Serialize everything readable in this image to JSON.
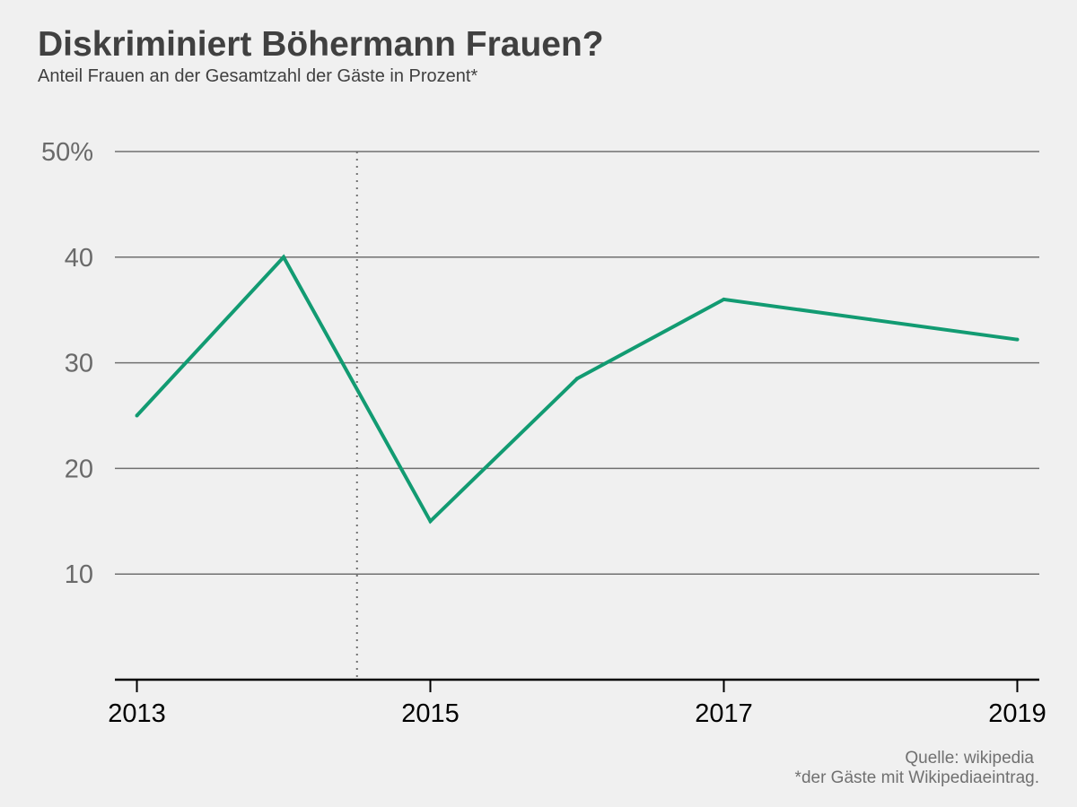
{
  "header": {
    "title": "Diskriminiert Böhermann Frauen?",
    "subtitle": "Anteil Frauen an der Gesamtzahl der Gäste in Prozent*"
  },
  "footer": {
    "source": "Quelle: wikipedia",
    "footnote": "*der Gäste mit Wikipediaeintrag."
  },
  "colors": {
    "line": "#129b72",
    "grid": "#707070",
    "axis": "#000000",
    "ytick_text": "#6a6a6a",
    "xtick_text": "#000000",
    "marker_line": "#707070"
  },
  "chart_data": {
    "type": "line",
    "title": "Diskriminiert Böhermann Frauen?",
    "subtitle": "Anteil Frauen an der Gesamtzahl der Gäste in Prozent*",
    "xlabel": "",
    "ylabel": "",
    "x": [
      2013,
      2014,
      2015,
      2016,
      2017,
      2018,
      2019
    ],
    "series": [
      {
        "values": [
          25,
          40,
          15,
          28.5,
          36,
          34.1,
          32.2
        ]
      }
    ],
    "xlim": [
      2012.85,
      2019.15
    ],
    "ylim": [
      0,
      50
    ],
    "xticks": [
      2013,
      2015,
      2017,
      2019
    ],
    "xtick_labels": [
      "2013",
      "2015",
      "2017",
      "2019"
    ],
    "yticks": [
      10,
      20,
      30,
      40,
      50
    ],
    "ytick_labels": [
      "10",
      "20",
      "30",
      "40",
      "50%"
    ],
    "vertical_marker": {
      "x": 2014.5,
      "style": "dotted"
    },
    "grid": "horizontal"
  }
}
